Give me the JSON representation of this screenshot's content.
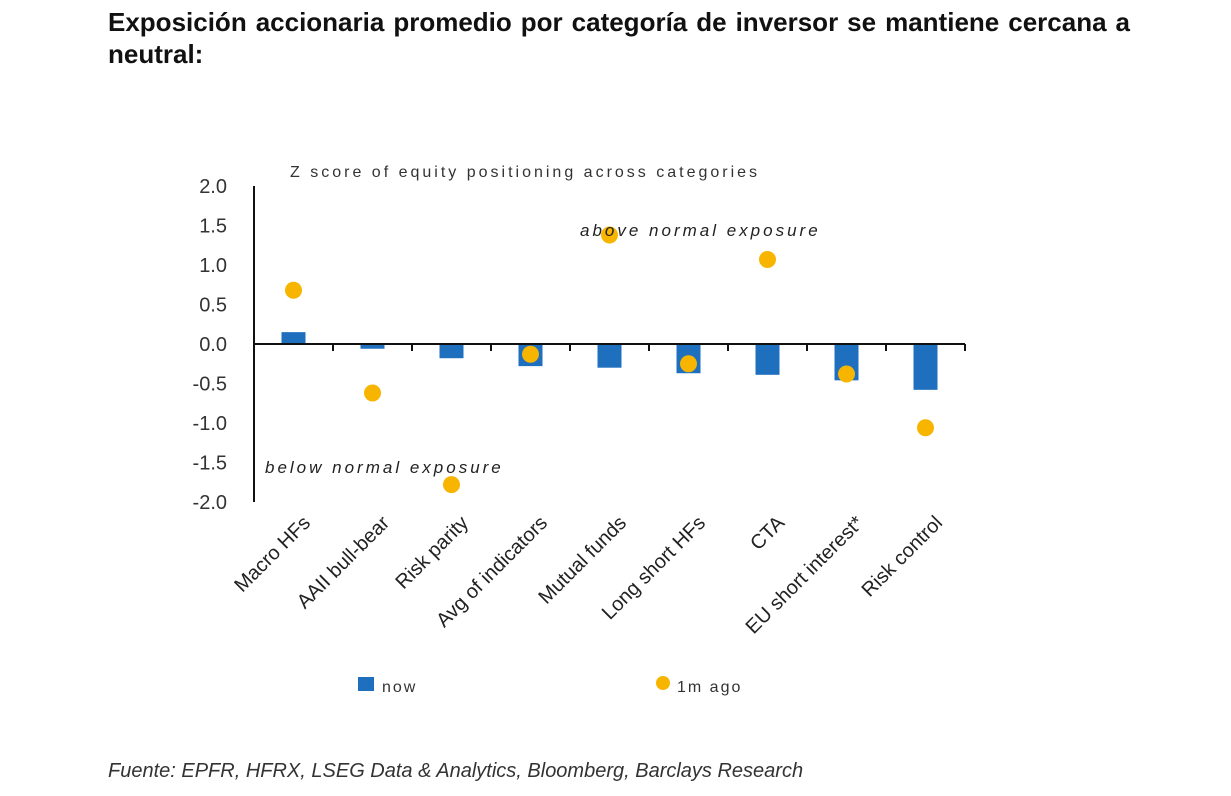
{
  "heading": "Exposición accionaria promedio por categoría de inversor se mantiene cercana a neutral:",
  "source": "Fuente: EPFR, HFRX, LSEG Data & Analytics, Bloomberg, Barclays Research",
  "colors": {
    "now": "#1f6fbf",
    "one_month_ago": "#f7b500",
    "axis": "#111111"
  },
  "chart_data": {
    "type": "bar",
    "title": "Z score of equity positioning across categories",
    "categories": [
      "Macro HFs",
      "AAII bull-bear",
      "Risk parity",
      "Avg of indicators",
      "Mutual funds",
      "Long short HFs",
      "CTA",
      "EU short interest*",
      "Risk control"
    ],
    "series": [
      {
        "name": "now",
        "kind": "bar",
        "values": [
          0.15,
          -0.06,
          -0.18,
          -0.28,
          -0.3,
          -0.37,
          -0.39,
          -0.46,
          -0.58
        ]
      },
      {
        "name": "1m ago",
        "kind": "scatter",
        "values": [
          0.68,
          -0.62,
          -1.78,
          -0.13,
          1.38,
          -0.25,
          1.07,
          -0.38,
          -1.06
        ]
      }
    ],
    "ylim": [
      -2.0,
      2.0
    ],
    "yticks": [
      "2.0",
      "1.5",
      "1.0",
      "0.5",
      "0.0",
      "-0.5",
      "-1.0",
      "-1.5",
      "-2.0"
    ],
    "annotations": [
      "above normal exposure",
      "below normal exposure"
    ],
    "legend": {
      "position": "bottom",
      "items": [
        "now",
        "1m ago"
      ]
    }
  }
}
